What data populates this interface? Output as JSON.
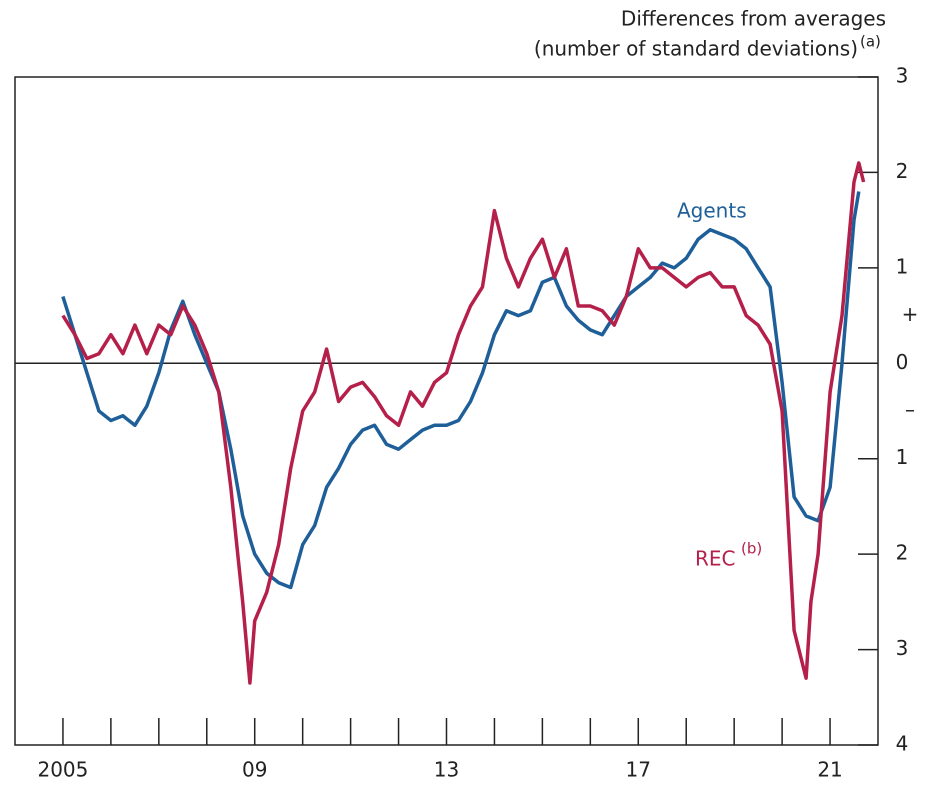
{
  "chart_data": {
    "type": "line",
    "title_lines": [
      "Differences from averages",
      "(number of standard deviations)"
    ],
    "title_note": "(a)",
    "xlim": [
      2004,
      2022
    ],
    "ylim": [
      -4,
      3
    ],
    "xticks": [
      {
        "value": 2005,
        "label": "2005"
      },
      {
        "value": 2009,
        "label": "09"
      },
      {
        "value": 2013,
        "label": "13"
      },
      {
        "value": 2017,
        "label": "17"
      },
      {
        "value": 2021,
        "label": "21"
      }
    ],
    "xminor_ticks": [
      2006,
      2007,
      2008,
      2010,
      2011,
      2012,
      2014,
      2015,
      2016,
      2018,
      2019,
      2020
    ],
    "yticks": [
      {
        "value": 3,
        "label": "3"
      },
      {
        "value": 2,
        "label": "2"
      },
      {
        "value": 1,
        "label": "1"
      },
      0,
      {
        "value": -1,
        "label": "1"
      },
      {
        "value": -2,
        "label": "2"
      },
      {
        "value": -3,
        "label": "3"
      },
      {
        "value": -4,
        "label": "4"
      }
    ],
    "sign_labels": [
      {
        "value": 0.5,
        "label": "+"
      },
      {
        "value": -0.5,
        "label": "–"
      }
    ],
    "series": [
      {
        "name": "Agents",
        "color": "#1f5f99",
        "x": [
          2005.0,
          2005.25,
          2005.5,
          2005.75,
          2006.0,
          2006.25,
          2006.5,
          2006.75,
          2007.0,
          2007.25,
          2007.5,
          2007.75,
          2008.0,
          2008.25,
          2008.5,
          2008.75,
          2009.0,
          2009.25,
          2009.5,
          2009.75,
          2010.0,
          2010.25,
          2010.5,
          2010.75,
          2011.0,
          2011.25,
          2011.5,
          2011.75,
          2012.0,
          2012.25,
          2012.5,
          2012.75,
          2013.0,
          2013.25,
          2013.5,
          2013.75,
          2014.0,
          2014.25,
          2014.5,
          2014.75,
          2015.0,
          2015.25,
          2015.5,
          2015.75,
          2016.0,
          2016.25,
          2016.5,
          2016.75,
          2017.0,
          2017.25,
          2017.5,
          2017.75,
          2018.0,
          2018.25,
          2018.5,
          2018.75,
          2019.0,
          2019.25,
          2019.5,
          2019.75,
          2020.0,
          2020.25,
          2020.5,
          2020.75,
          2021.0,
          2021.25,
          2021.5,
          2021.6
        ],
        "values": [
          0.7,
          0.3,
          -0.1,
          -0.5,
          -0.6,
          -0.55,
          -0.65,
          -0.45,
          -0.1,
          0.35,
          0.65,
          0.3,
          0.0,
          -0.3,
          -0.9,
          -1.6,
          -2.0,
          -2.2,
          -2.3,
          -2.35,
          -1.9,
          -1.7,
          -1.3,
          -1.1,
          -0.85,
          -0.7,
          -0.65,
          -0.85,
          -0.9,
          -0.8,
          -0.7,
          -0.65,
          -0.65,
          -0.6,
          -0.4,
          -0.1,
          0.3,
          0.55,
          0.5,
          0.55,
          0.85,
          0.9,
          0.6,
          0.45,
          0.35,
          0.3,
          0.5,
          0.7,
          0.8,
          0.9,
          1.05,
          1.0,
          1.1,
          1.3,
          1.4,
          1.35,
          1.3,
          1.2,
          1.0,
          0.8,
          -0.2,
          -1.4,
          -1.6,
          -1.65,
          -1.3,
          0.0,
          1.5,
          1.8
        ]
      },
      {
        "name": "REC",
        "name_note": "(b)",
        "color": "#b5204a",
        "x": [
          2005.0,
          2005.25,
          2005.5,
          2005.75,
          2006.0,
          2006.25,
          2006.5,
          2006.75,
          2007.0,
          2007.25,
          2007.5,
          2007.75,
          2008.0,
          2008.25,
          2008.5,
          2008.75,
          2008.9,
          2009.0,
          2009.25,
          2009.5,
          2009.75,
          2010.0,
          2010.25,
          2010.5,
          2010.75,
          2011.0,
          2011.25,
          2011.5,
          2011.75,
          2012.0,
          2012.25,
          2012.5,
          2012.75,
          2013.0,
          2013.25,
          2013.5,
          2013.75,
          2014.0,
          2014.25,
          2014.5,
          2014.75,
          2015.0,
          2015.25,
          2015.5,
          2015.75,
          2016.0,
          2016.25,
          2016.5,
          2016.75,
          2017.0,
          2017.25,
          2017.5,
          2017.75,
          2018.0,
          2018.25,
          2018.5,
          2018.75,
          2019.0,
          2019.25,
          2019.5,
          2019.75,
          2020.0,
          2020.25,
          2020.5,
          2020.6,
          2020.75,
          2021.0,
          2021.25,
          2021.5,
          2021.6,
          2021.7
        ],
        "values": [
          0.5,
          0.3,
          0.05,
          0.1,
          0.3,
          0.1,
          0.4,
          0.1,
          0.4,
          0.3,
          0.6,
          0.4,
          0.1,
          -0.3,
          -1.3,
          -2.5,
          -3.35,
          -2.7,
          -2.4,
          -1.9,
          -1.1,
          -0.5,
          -0.3,
          0.15,
          -0.4,
          -0.25,
          -0.2,
          -0.35,
          -0.55,
          -0.65,
          -0.3,
          -0.45,
          -0.2,
          -0.1,
          0.3,
          0.6,
          0.8,
          1.6,
          1.1,
          0.8,
          1.1,
          1.3,
          0.9,
          1.2,
          0.6,
          0.6,
          0.55,
          0.4,
          0.7,
          1.2,
          1.0,
          1.0,
          0.9,
          0.8,
          0.9,
          0.95,
          0.8,
          0.8,
          0.5,
          0.4,
          0.2,
          -0.5,
          -2.8,
          -3.3,
          -2.5,
          -2.0,
          -0.3,
          0.5,
          1.9,
          2.1,
          1.9
        ]
      }
    ]
  }
}
